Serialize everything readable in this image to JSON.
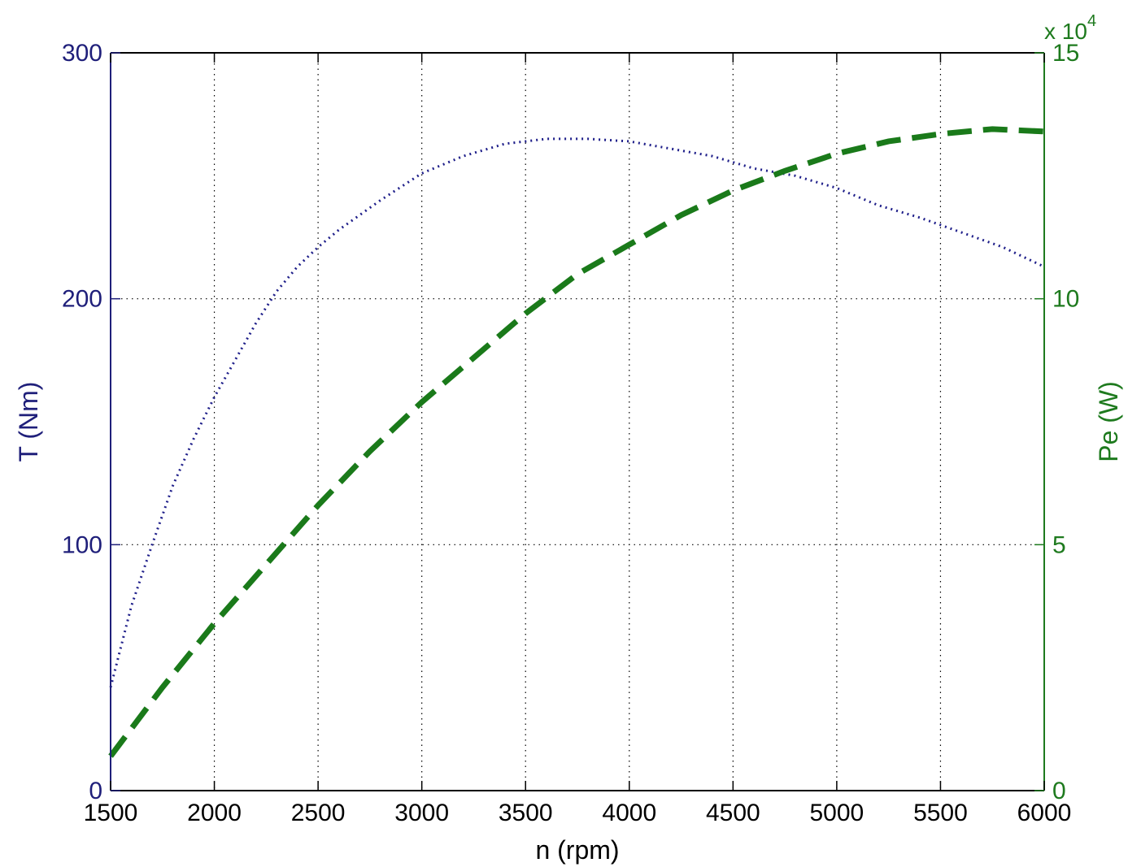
{
  "chart_data": {
    "type": "line",
    "title": "",
    "xlabel": "n (rpm)",
    "ylabel_left": "T (Nm)",
    "ylabel_right": "Pe (W)",
    "right_axis_multiplier": "x 10",
    "right_axis_multiplier_exponent": "4",
    "xlim": [
      1500,
      6000
    ],
    "ylim_left": [
      0,
      300
    ],
    "ylim_right": [
      0,
      15
    ],
    "xticks": [
      1500,
      2000,
      2500,
      3000,
      3500,
      4000,
      4500,
      5000,
      5500,
      6000
    ],
    "yticks_left": [
      0,
      100,
      200,
      300
    ],
    "yticks_right": [
      0,
      5,
      10,
      15
    ],
    "grid": true,
    "colors": {
      "left_axis": "#1f1f7a",
      "right_axis": "#1e7a1e",
      "torque_line": "#1f1f8a",
      "power_line": "#1a7a1a"
    },
    "series": [
      {
        "axis": "left",
        "style": "dotted",
        "x": [
          1500,
          1600,
          1700,
          1800,
          1900,
          2000,
          2100,
          2200,
          2300,
          2400,
          2500,
          2600,
          2800,
          3000,
          3200,
          3400,
          3600,
          3800,
          4000,
          4200,
          4400,
          4600,
          4800,
          5000,
          5200,
          5400,
          5600,
          5800,
          6000
        ],
        "y": [
          42,
          75,
          100,
          124,
          143,
          160,
          175,
          190,
          203,
          213,
          221,
          228,
          240,
          251,
          258,
          263,
          265,
          265,
          264,
          261,
          258,
          253,
          250,
          245,
          238,
          233,
          227,
          221,
          213
        ]
      },
      {
        "axis": "right",
        "style": "dashed",
        "x": [
          1500,
          1750,
          2000,
          2250,
          2500,
          2750,
          3000,
          3250,
          3500,
          3750,
          4000,
          4250,
          4500,
          4750,
          5000,
          5250,
          5500,
          5750,
          6000
        ],
        "y": [
          0.7,
          2.1,
          3.4,
          4.6,
          5.8,
          6.9,
          7.9,
          8.8,
          9.7,
          10.5,
          11.1,
          11.7,
          12.2,
          12.6,
          12.95,
          13.2,
          13.35,
          13.45,
          13.4
        ]
      }
    ]
  }
}
